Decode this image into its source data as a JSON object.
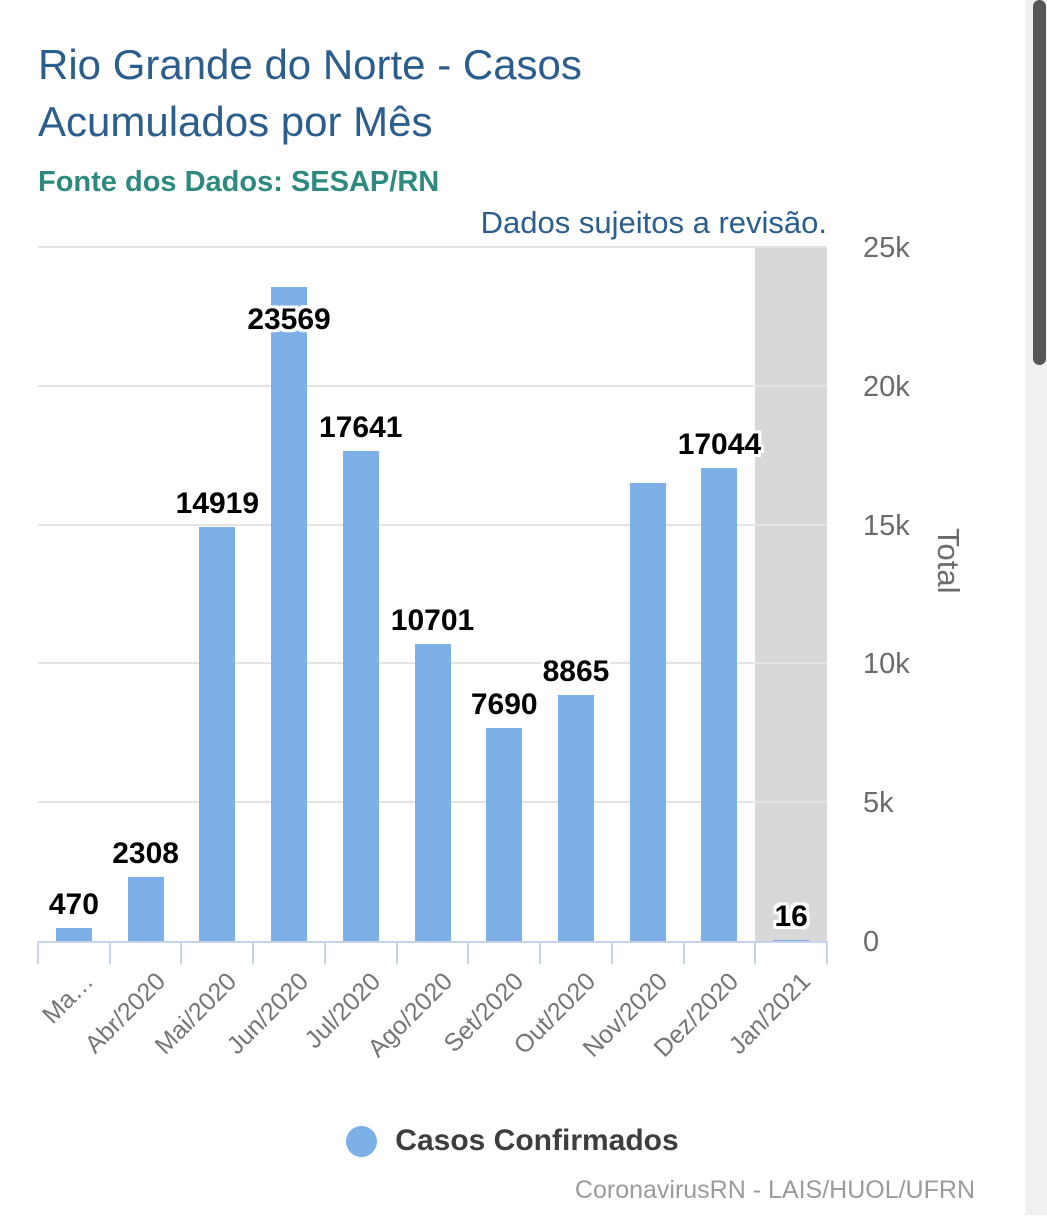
{
  "page": {
    "source_label": "Fonte dos Dados: SESAP/RN",
    "revision_note": "Dados sujeitos a revisão.",
    "credit": "CoronavirusRN - LAIS/HUOL/UFRN"
  },
  "chart_data": {
    "type": "bar",
    "title": "Rio Grande do Norte - Casos Acumulados por Mês",
    "source": "Fonte dos Dados: SESAP/RN",
    "note": "Dados sujeitos a revisão.",
    "categories": [
      "Ma…",
      "Abr/2020",
      "Mai/2020",
      "Jun/2020",
      "Jul/2020",
      "Ago/2020",
      "Set/2020",
      "Out/2020",
      "Nov/2020",
      "Dez/2020",
      "Jan/2021"
    ],
    "series": [
      {
        "name": "Casos Confirmados",
        "values": [
          470,
          2308,
          14919,
          23569,
          17641,
          10701,
          7690,
          8865,
          16500,
          17044,
          16
        ]
      }
    ],
    "data_labels": [
      "470",
      "2308",
      "14919",
      "23569",
      "17641",
      "10701",
      "7690",
      "8865",
      "",
      "17044",
      "16"
    ],
    "xlabel": "",
    "ylabel": "Total",
    "ylim": [
      0,
      25000
    ],
    "ytick_labels": [
      "0",
      "5k",
      "10k",
      "15k",
      "20k",
      "25k"
    ],
    "grid": true,
    "legend_position": "bottom",
    "bar_color": "#7cb0e6",
    "highlighted_category": "Jan/2021",
    "highlight_color": "#d8d8d8"
  },
  "legend": {
    "items": [
      {
        "label": "Casos Confirmados",
        "color": "#7cb0e6"
      }
    ]
  },
  "colors": {
    "title": "#2b5e8c",
    "source": "#2e897e",
    "note": "#2b5e8c",
    "bar": "#7cb0e6",
    "highlight_band": "#d8d8d8",
    "gridline": "#e4e4e4",
    "axis": "#c6d3ea",
    "ytick_text": "#6b6b6b",
    "xtick_text": "#757575",
    "data_label_text": "#000000",
    "legend_text": "#3d3d3d",
    "credit_text": "#9b9b9b",
    "scrollbar_thumb": "#575757",
    "scrollbar_track": "#f0f0f0"
  }
}
